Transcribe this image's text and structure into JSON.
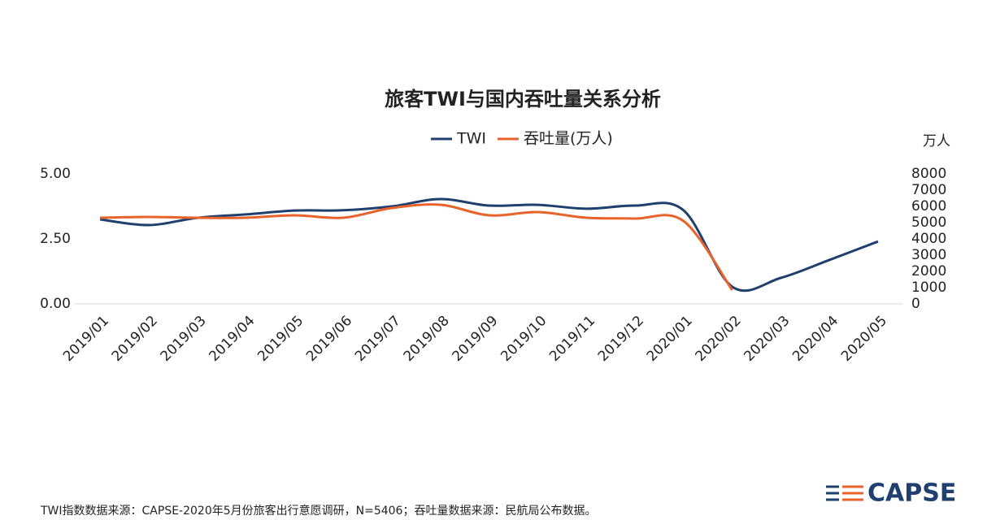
{
  "chart_data": {
    "type": "line",
    "title": "旅客TWI与国内吞吐量关系分析",
    "y2_label": "万人",
    "categories": [
      "2019/01",
      "2019/02",
      "2019/03",
      "2019/04",
      "2019/05",
      "2019/06",
      "2019/07",
      "2019/08",
      "2019/09",
      "2019/10",
      "2019/11",
      "2019/12",
      "2020/01",
      "2020/02",
      "2020/03",
      "2020/04",
      "2020/05"
    ],
    "series": [
      {
        "name": "TWI",
        "color": "#1f3f6e",
        "values": [
          3.25,
          3.03,
          3.31,
          3.44,
          3.59,
          3.6,
          3.75,
          4.03,
          3.78,
          3.81,
          3.66,
          3.78,
          3.6,
          0.66,
          1.0,
          1.69,
          2.4
        ]
      },
      {
        "name": "吞吐量(万人)",
        "color": "#e8622c",
        "axis": "y2",
        "values": [
          5300,
          5350,
          5300,
          5300,
          5450,
          5300,
          5900,
          6100,
          5450,
          5650,
          5300,
          5250,
          5100,
          850,
          null,
          null,
          null
        ]
      }
    ],
    "ylim": [
      0,
      5
    ],
    "yticks": [
      {
        "value": 0,
        "label": "0.00"
      },
      {
        "value": 2.5,
        "label": "2.50"
      },
      {
        "value": 5,
        "label": "5.00"
      }
    ],
    "y2lim": [
      0,
      8000
    ],
    "y2ticks": [
      0,
      1000,
      2000,
      3000,
      4000,
      5000,
      6000,
      7000,
      8000
    ],
    "legend": "top",
    "footnote": "TWI指数数据来源：CAPSE-2020年5月份旅客出行意愿调研，N=5406；吞吐量数据来源：民航局公布数据。",
    "logo": "CAPSE"
  }
}
